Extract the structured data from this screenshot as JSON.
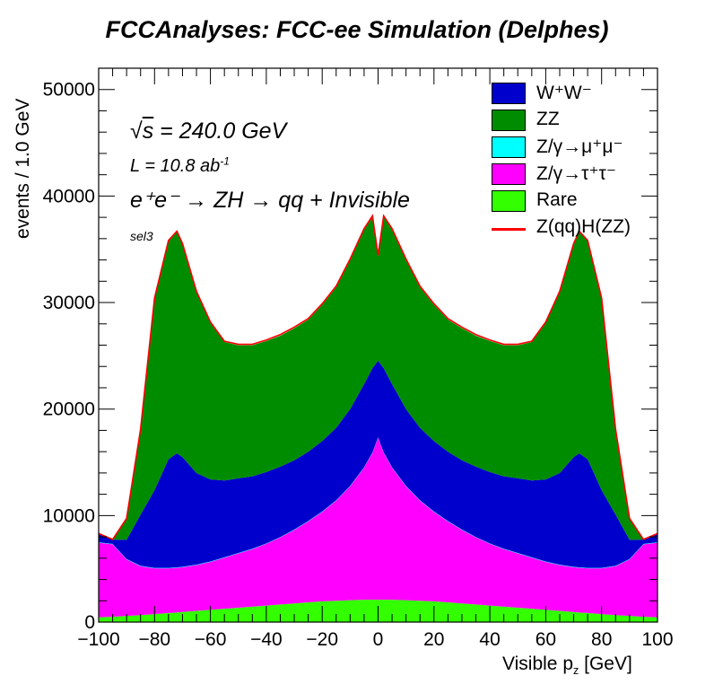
{
  "chart_data": {
    "type": "area",
    "title": "FCCAnalyses: FCC-ee Simulation (Delphes)",
    "xlabel": "Visible p_z [GeV]",
    "ylabel": "events / 1.0 GeV",
    "xlim": [
      -100,
      100
    ],
    "ylim": [
      0,
      52000
    ],
    "xticks": [
      -100,
      -80,
      -60,
      -40,
      -20,
      0,
      20,
      40,
      60,
      80,
      100
    ],
    "xtick_labels": [
      "−100",
      "−80",
      "−60",
      "−40",
      "−20",
      "0",
      "20",
      "40",
      "60",
      "80",
      "100"
    ],
    "yticks": [
      0,
      10000,
      20000,
      30000,
      40000,
      50000
    ],
    "ytick_labels": [
      "0",
      "10000",
      "20000",
      "30000",
      "40000",
      "50000"
    ],
    "stacked": true,
    "x": [
      -100,
      -95,
      -90,
      -85,
      -80,
      -75,
      -72,
      -70,
      -65,
      -60,
      -55,
      -50,
      -45,
      -40,
      -35,
      -30,
      -25,
      -20,
      -15,
      -10,
      -5,
      -2,
      0,
      2,
      5,
      10,
      15,
      20,
      25,
      30,
      35,
      40,
      45,
      50,
      55,
      60,
      65,
      70,
      72,
      75,
      80,
      85,
      90,
      95,
      100
    ],
    "series": [
      {
        "name": "Rare",
        "color": "#33ff00",
        "values": [
          450,
          500,
          580,
          650,
          750,
          850,
          900,
          950,
          1050,
          1150,
          1250,
          1350,
          1450,
          1550,
          1650,
          1750,
          1850,
          1950,
          2000,
          2050,
          2100,
          2100,
          2100,
          2100,
          2100,
          2050,
          2000,
          1950,
          1850,
          1750,
          1650,
          1550,
          1450,
          1350,
          1250,
          1150,
          1050,
          950,
          900,
          850,
          750,
          650,
          580,
          500,
          450
        ]
      },
      {
        "name": "Z/γ→τ⁺τ⁻",
        "color": "#ff00ff",
        "values": [
          7000,
          6800,
          5300,
          4600,
          4300,
          4200,
          4200,
          4200,
          4300,
          4500,
          4800,
          5100,
          5400,
          5800,
          6300,
          6900,
          7600,
          8400,
          9400,
          10700,
          12400,
          13800,
          15200,
          13800,
          12400,
          10700,
          9400,
          8400,
          7600,
          6900,
          6300,
          5800,
          5400,
          5100,
          4800,
          4500,
          4300,
          4200,
          4200,
          4200,
          4300,
          4600,
          5300,
          6800,
          7000
        ]
      },
      {
        "name": "Z/γ→μ⁺μ⁻",
        "color": "#00ffff",
        "values": [
          40,
          40,
          40,
          40,
          40,
          40,
          40,
          40,
          40,
          40,
          40,
          40,
          40,
          40,
          40,
          40,
          40,
          40,
          40,
          40,
          40,
          40,
          40,
          40,
          40,
          40,
          40,
          40,
          40,
          40,
          40,
          40,
          40,
          40,
          40,
          40,
          40,
          40,
          40,
          40,
          40,
          40,
          40,
          40,
          40
        ]
      },
      {
        "name": "W⁺W⁻",
        "color": "#0000cc",
        "values": [
          800,
          400,
          1800,
          4800,
          7300,
          10200,
          10700,
          10300,
          8600,
          7700,
          7200,
          7000,
          6800,
          6700,
          6600,
          6500,
          6500,
          6600,
          6800,
          7200,
          7800,
          7900,
          7200,
          7900,
          7800,
          7200,
          6800,
          6600,
          6500,
          6500,
          6600,
          6700,
          6800,
          7000,
          7200,
          7700,
          8600,
          10300,
          10700,
          10200,
          7300,
          4800,
          1800,
          400,
          800
        ]
      },
      {
        "name": "ZZ",
        "color": "#008c00",
        "values": [
          0,
          0,
          2000,
          8000,
          18000,
          20500,
          20800,
          20000,
          17000,
          14700,
          13000,
          12500,
          12300,
          12300,
          12300,
          12400,
          12400,
          12800,
          13200,
          14000,
          14500,
          14200,
          9800,
          14200,
          14500,
          14000,
          13200,
          12800,
          12400,
          12400,
          12300,
          12300,
          12300,
          12500,
          13000,
          14700,
          17000,
          20000,
          20800,
          20500,
          18000,
          8000,
          2000,
          0,
          0
        ]
      },
      {
        "name": "Z(qq)H(ZZ)",
        "color": "#ff0000",
        "values": [
          20,
          20,
          20,
          30,
          40,
          50,
          60,
          60,
          70,
          80,
          80,
          90,
          90,
          90,
          100,
          100,
          100,
          100,
          100,
          100,
          100,
          100,
          100,
          100,
          100,
          100,
          100,
          100,
          100,
          100,
          100,
          90,
          90,
          90,
          80,
          80,
          70,
          60,
          60,
          50,
          40,
          30,
          20,
          20,
          20
        ]
      }
    ],
    "legend_order": [
      "W⁺W⁻",
      "ZZ",
      "Z/γ→μ⁺μ⁻",
      "Z/γ→τ⁺τ⁻",
      "Rare",
      "Z(qq)H(ZZ)"
    ],
    "legend_position": "top-right",
    "grid": false
  },
  "annotations": {
    "sqrt_symbol": "√",
    "s": "s",
    "energy": " = 240.0 GeV",
    "lumi_text": "L = 10.8 ab",
    "lumi_sup": "-1",
    "process": "e⁺e⁻ → ZH → qq + Invisible",
    "selection": "sel3"
  },
  "legend": {
    "items": [
      {
        "label": "W⁺W⁻",
        "color": "#0000cc",
        "kind": "box"
      },
      {
        "label": "ZZ",
        "color": "#008c00",
        "kind": "box"
      },
      {
        "label": "Z/γ→μ⁺μ⁻",
        "color": "#00ffff",
        "kind": "box"
      },
      {
        "label": "Z/γ→τ⁺τ⁻",
        "color": "#ff00ff",
        "kind": "box"
      },
      {
        "label": "Rare",
        "color": "#33ff00",
        "kind": "box"
      },
      {
        "label": "Z(qq)H(ZZ)",
        "color": "#ff0000",
        "kind": "line"
      }
    ]
  },
  "xlabel_main": "Visible p",
  "xlabel_sub": "z",
  "xlabel_unit": " [GeV]"
}
